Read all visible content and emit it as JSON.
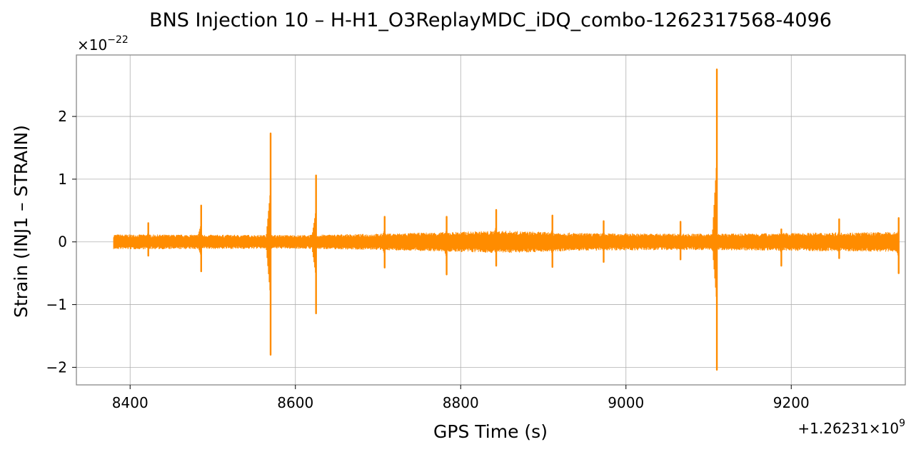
{
  "chart_data": {
    "type": "line",
    "title": "BNS Injection 10 – H-H1_O3ReplayMDC_iDQ_combo-1262317568-4096",
    "xlabel": "GPS Time (s)",
    "ylabel": "Strain (INJ1 – STRAIN)",
    "x_offset_label": "+1.26231×10",
    "x_offset_exp": "9",
    "y_scale_label": "×10",
    "y_scale_exp": "−22",
    "xlim": [
      8335,
      9338
    ],
    "ylim": [
      -2.28,
      2.98
    ],
    "x_ticks": [
      8400,
      8600,
      8800,
      9000,
      9200
    ],
    "x_tick_labels": [
      "8400",
      "8600",
      "8800",
      "9000",
      "9200"
    ],
    "y_ticks": [
      -2,
      -1,
      0,
      1,
      2
    ],
    "y_tick_labels": [
      "−2",
      "−1",
      "0",
      "1",
      "2"
    ],
    "grid": true,
    "series": [
      {
        "color": "#ff8c00",
        "x_range": [
          8380,
          9330
        ],
        "baseline_envelope": [
          {
            "x": 8380,
            "amp": 0.12
          },
          {
            "x": 8600,
            "amp": 0.11
          },
          {
            "x": 8700,
            "amp": 0.13
          },
          {
            "x": 8850,
            "amp": 0.18
          },
          {
            "x": 8950,
            "amp": 0.14
          },
          {
            "x": 9100,
            "amp": 0.13
          },
          {
            "x": 9250,
            "amp": 0.15
          },
          {
            "x": 9330,
            "amp": 0.16
          }
        ],
        "spikes": [
          {
            "x": 8422,
            "max": 0.3,
            "min": -0.22
          },
          {
            "x": 8486,
            "max": 0.58,
            "min": -0.47
          },
          {
            "x": 8570,
            "max": 1.73,
            "min": -1.8
          },
          {
            "x": 8625,
            "max": 1.06,
            "min": -1.14
          },
          {
            "x": 8708,
            "max": 0.4,
            "min": -0.41
          },
          {
            "x": 8783,
            "max": 0.4,
            "min": -0.52
          },
          {
            "x": 8843,
            "max": 0.51,
            "min": -0.38
          },
          {
            "x": 8911,
            "max": 0.42,
            "min": -0.4
          },
          {
            "x": 8973,
            "max": 0.33,
            "min": -0.32
          },
          {
            "x": 9066,
            "max": 0.32,
            "min": -0.28
          },
          {
            "x": 9110,
            "max": 2.75,
            "min": -2.04
          },
          {
            "x": 9188,
            "max": 0.2,
            "min": -0.38
          },
          {
            "x": 9258,
            "max": 0.36,
            "min": -0.26
          },
          {
            "x": 9330,
            "max": 0.38,
            "min": -0.5
          }
        ]
      }
    ]
  }
}
